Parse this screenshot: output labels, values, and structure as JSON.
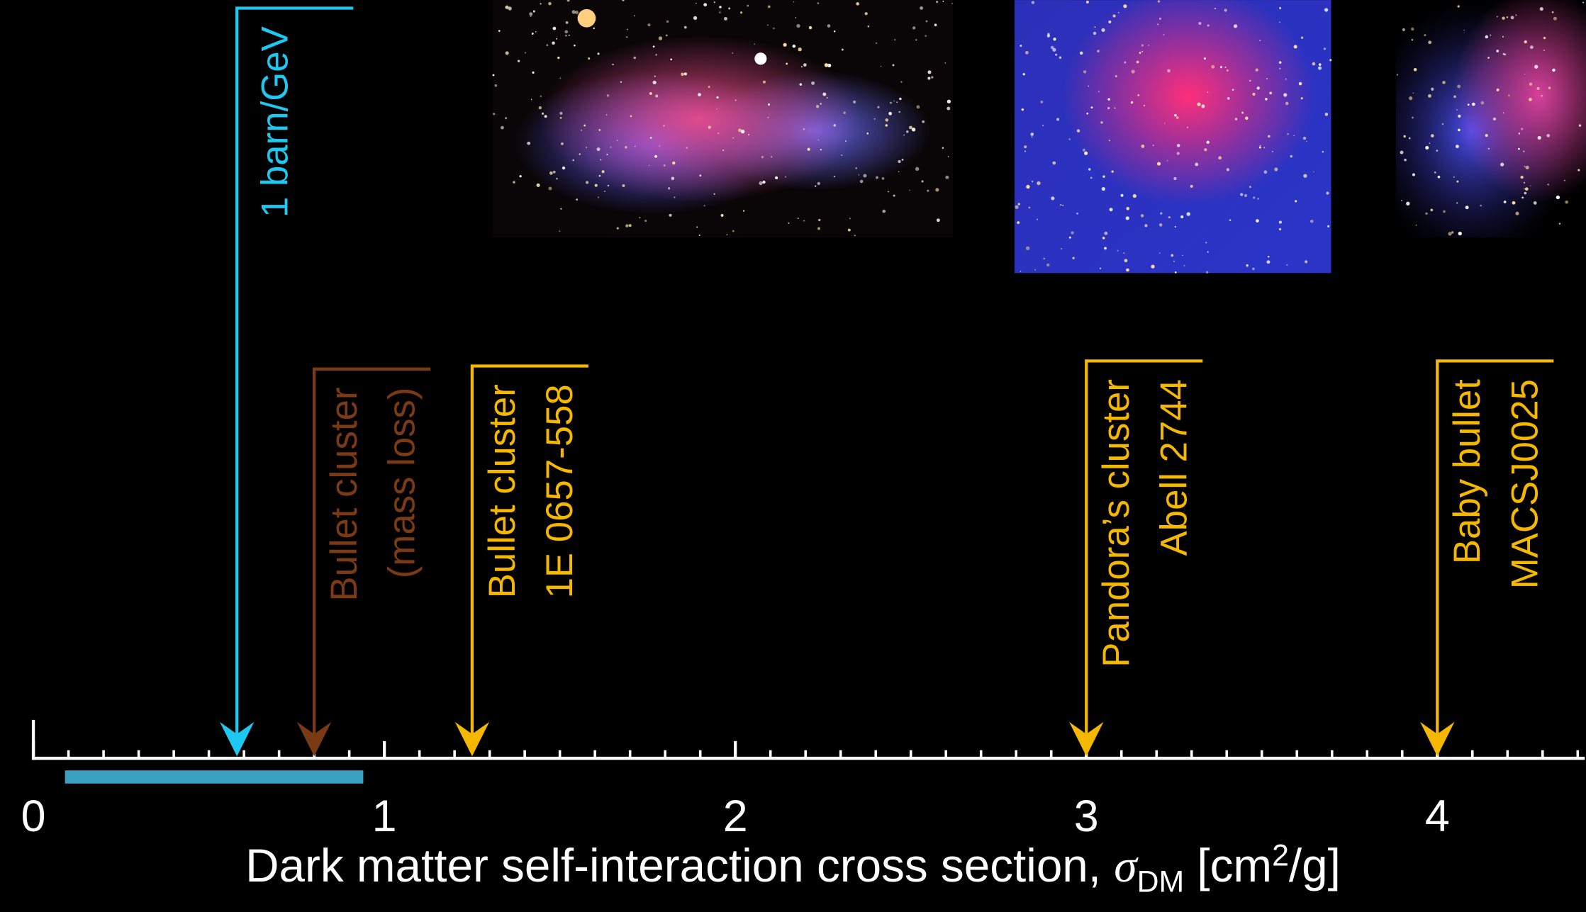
{
  "chart_data": {
    "type": "markers",
    "x_label": [
      "Dark matter self-interaction cross section, ",
      "σ",
      "DM",
      " [cm",
      "2",
      "/g]"
    ],
    "xlim": [
      0,
      4.42
    ],
    "xticks": [
      0,
      1,
      2,
      3,
      4
    ],
    "minor_tick_step": 0.1,
    "band": {
      "values": [
        0.09,
        0.94
      ],
      "color": "#3a9fc0"
    },
    "markers": [
      {
        "lines": [
          "1 barn/GeV"
        ],
        "value": 0.58,
        "color": "#1ec8f0"
      },
      {
        "lines": [
          "Bullet cluster",
          "(mass loss)"
        ],
        "value": 0.8,
        "color": "#7a3a14"
      },
      {
        "lines": [
          "Bullet cluster",
          "1E 0657-558"
        ],
        "value": 1.25,
        "color": "#f5b800"
      },
      {
        "lines": [
          "Pandora’s cluster",
          "Abell 2744"
        ],
        "value": 3,
        "color": "#f5b800"
      },
      {
        "lines": [
          "Baby bullet",
          "MACSJ0025"
        ],
        "value": 4,
        "color": "#f5b800"
      }
    ]
  }
}
